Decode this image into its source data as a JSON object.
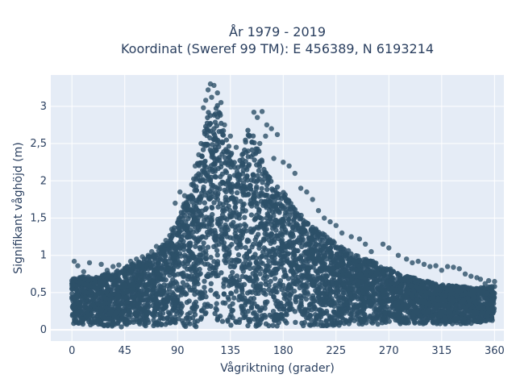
{
  "chart_data": {
    "type": "scatter",
    "title": "År 1979 - 2019",
    "subtitle": "Koordinat (Sweref 99 TM): E 456389, N 6193214",
    "xlabel": "Vågriktning (grader)",
    "ylabel": "Signifikant våghöjd (m)",
    "xlim": [
      -18,
      368
    ],
    "ylim": [
      -0.15,
      3.42
    ],
    "x_ticks": [
      0,
      45,
      90,
      135,
      180,
      225,
      270,
      315,
      360
    ],
    "x_tick_labels": [
      "0",
      "45",
      "90",
      "135",
      "180",
      "225",
      "270",
      "315",
      "360"
    ],
    "y_ticks": [
      0,
      0.5,
      1,
      1.5,
      2,
      2.5,
      3
    ],
    "y_tick_labels": [
      "0",
      "0,5",
      "1",
      "1,5",
      "2",
      "2,5",
      "3"
    ],
    "grid": true,
    "colors": {
      "marker": "#2d5068",
      "plot_bg": "#e5ecf6",
      "grid": "#ffffff",
      "text": "#2a3f5f"
    },
    "series": [
      {
        "envelope_x": [
          0,
          10,
          20,
          30,
          40,
          50,
          60,
          70,
          80,
          90,
          95,
          100,
          105,
          110,
          115,
          120,
          125,
          130,
          135,
          140,
          145,
          150,
          155,
          160,
          165,
          170,
          180,
          190,
          200,
          210,
          225,
          240,
          255,
          270,
          285,
          300,
          315,
          330,
          345,
          360
        ],
        "envelope_y_max": [
          0.72,
          0.74,
          0.72,
          0.78,
          0.82,
          0.9,
          0.97,
          1.06,
          1.22,
          1.5,
          1.72,
          1.9,
          2.18,
          2.5,
          2.95,
          3.2,
          3.1,
          2.75,
          2.55,
          2.3,
          2.5,
          2.78,
          2.72,
          2.45,
          2.2,
          2.08,
          1.92,
          1.68,
          1.5,
          1.38,
          1.2,
          1.05,
          0.96,
          0.85,
          0.75,
          0.68,
          0.62,
          0.6,
          0.58,
          0.6
        ],
        "envelope_y_min": [
          0.08,
          0.07,
          0.06,
          0.05,
          0.04,
          0.04,
          0.04,
          0.04,
          0.04,
          0.04,
          0.04,
          0.04,
          0.04,
          0.05,
          0.05,
          0.05,
          0.05,
          0.05,
          0.05,
          0.05,
          0.05,
          0.05,
          0.05,
          0.05,
          0.05,
          0.05,
          0.05,
          0.05,
          0.05,
          0.05,
          0.06,
          0.07,
          0.07,
          0.08,
          0.08,
          0.08,
          0.08,
          0.08,
          0.09,
          0.1
        ]
      }
    ],
    "points": [
      [
        118,
        3.3
      ],
      [
        121,
        3.28
      ],
      [
        116,
        3.22
      ],
      [
        124,
        3.18
      ],
      [
        119,
        3.12
      ],
      [
        114,
        3.08
      ],
      [
        127,
        3.05
      ],
      [
        112,
        2.98
      ],
      [
        155,
        2.92
      ],
      [
        162,
        2.93
      ],
      [
        166,
        2.75
      ],
      [
        170,
        2.7
      ],
      [
        175,
        2.62
      ],
      [
        158,
        2.85
      ],
      [
        148,
        2.52
      ],
      [
        185,
        2.2
      ],
      [
        190,
        2.1
      ],
      [
        195,
        1.9
      ],
      [
        205,
        1.75
      ],
      [
        210,
        1.6
      ],
      [
        92,
        1.85
      ],
      [
        88,
        1.7
      ],
      [
        96,
        1.8
      ],
      [
        102,
        1.95
      ],
      [
        98,
        1.7
      ],
      [
        215,
        1.5
      ],
      [
        225,
        1.4
      ],
      [
        230,
        1.3
      ],
      [
        238,
        1.25
      ],
      [
        245,
        1.22
      ],
      [
        265,
        1.15
      ],
      [
        270,
        1.1
      ],
      [
        278,
        1.0
      ],
      [
        255,
        1.05
      ],
      [
        290,
        0.9
      ],
      [
        300,
        0.88
      ],
      [
        310,
        0.86
      ],
      [
        320,
        0.85
      ],
      [
        330,
        0.82
      ],
      [
        340,
        0.72
      ],
      [
        348,
        0.68
      ],
      [
        355,
        0.66
      ],
      [
        360,
        0.65
      ],
      [
        72,
        1.12
      ],
      [
        68,
        1.05
      ],
      [
        80,
        1.2
      ],
      [
        85,
        1.35
      ],
      [
        75,
        1.1
      ],
      [
        2,
        0.92
      ],
      [
        5,
        0.86
      ],
      [
        15,
        0.9
      ],
      [
        25,
        0.88
      ],
      [
        35,
        0.85
      ],
      [
        40,
        0.87
      ],
      [
        50,
        0.92
      ],
      [
        55,
        0.95
      ],
      [
        60,
        0.98
      ],
      [
        65,
        1.0
      ],
      [
        10,
        0.78
      ],
      [
        30,
        0.8
      ],
      [
        135,
        2.6
      ],
      [
        140,
        2.45
      ],
      [
        145,
        2.35
      ],
      [
        150,
        2.4
      ],
      [
        160,
        2.5
      ],
      [
        172,
        2.3
      ],
      [
        180,
        2.25
      ],
      [
        200,
        1.85
      ],
      [
        220,
        1.45
      ],
      [
        250,
        1.15
      ],
      [
        285,
        0.95
      ],
      [
        295,
        0.92
      ],
      [
        305,
        0.85
      ],
      [
        315,
        0.8
      ],
      [
        325,
        0.84
      ],
      [
        335,
        0.75
      ],
      [
        345,
        0.7
      ],
      [
        105,
        2.2
      ],
      [
        108,
        2.35
      ],
      [
        110,
        2.5
      ],
      [
        130,
        2.75
      ],
      [
        165,
        2.6
      ],
      [
        352,
        0.62
      ],
      [
        1,
        0.6
      ],
      [
        358,
        0.58
      ],
      [
        0,
        0.55
      ]
    ]
  }
}
